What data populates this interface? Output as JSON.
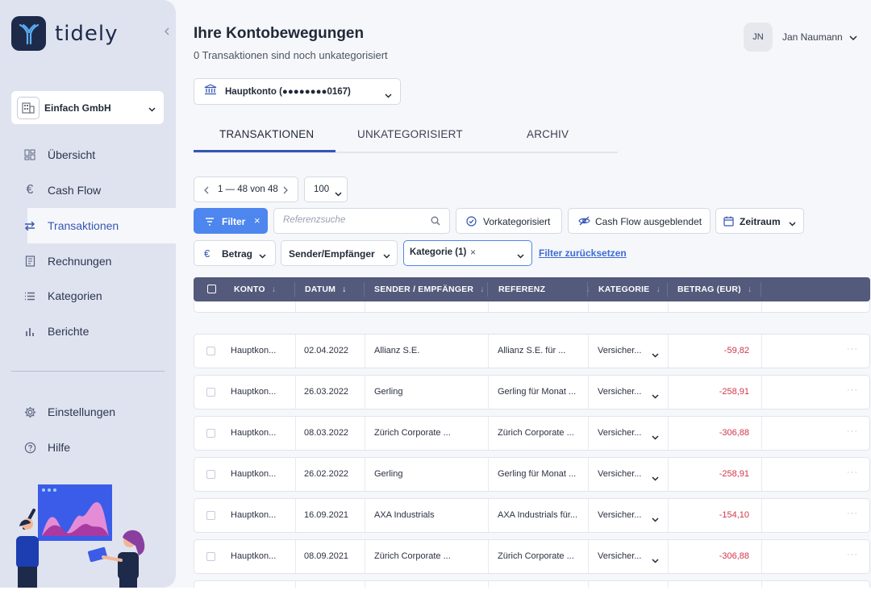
{
  "app": {
    "name": "tidely"
  },
  "sidebar": {
    "company": "Einfach GmbH",
    "nav": [
      {
        "label": "Übersicht",
        "icon": "dashboard-icon"
      },
      {
        "label": "Cash Flow",
        "icon": "euro-icon"
      },
      {
        "label": "Transaktionen",
        "icon": "transfer-icon"
      },
      {
        "label": "Rechnungen",
        "icon": "invoice-icon"
      },
      {
        "label": "Kategorien",
        "icon": "list-icon"
      },
      {
        "label": "Berichte",
        "icon": "bar-chart-icon"
      }
    ],
    "bottom_nav": [
      {
        "label": "Einstellungen",
        "icon": "gear-icon"
      },
      {
        "label": "Hilfe",
        "icon": "help-icon"
      }
    ]
  },
  "header": {
    "title": "Ihre Kontobewegungen",
    "subtitle": "0 Transaktionen sind noch unkategorisiert",
    "user_initials": "JN",
    "user_name": "Jan Naumann"
  },
  "account": {
    "label": "Hauptkonto (●●●●●●●●0167)"
  },
  "tabs": [
    {
      "label": "TRANSAKTIONEN",
      "active": true
    },
    {
      "label": "UNKATEGORISIERT",
      "active": false
    },
    {
      "label": "ARCHIV",
      "active": false
    }
  ],
  "pagination": {
    "range": "1 — 48 von 48",
    "per_page": "100"
  },
  "filters": {
    "filter_label": "Filter",
    "search_placeholder": "Referenzsuche",
    "vorkategorisiert": "Vorkategorisiert",
    "cashflow_hidden": "Cash Flow ausgeblendet",
    "zeitraum": "Zeitraum",
    "betrag": "Betrag",
    "sender": "Sender/Empfänger",
    "kategorie": "Kategorie (1)",
    "reset": "Filter zurücksetzen"
  },
  "table": {
    "columns": [
      "KONTO",
      "DATUM",
      "SENDER / EMPFÄNGER",
      "REFERENZ",
      "KATEGORIE",
      "BETRAG (EUR)"
    ],
    "rows": [
      {
        "konto": "Hauptkon...",
        "datum": "02.04.2022",
        "sender": "Allianz S.E.",
        "referenz": "Allianz S.E. für ...",
        "kategorie": "Versicher...",
        "betrag": "-59,82"
      },
      {
        "konto": "Hauptkon...",
        "datum": "26.03.2022",
        "sender": "Gerling",
        "referenz": "Gerling für Monat ...",
        "kategorie": "Versicher...",
        "betrag": "-258,91"
      },
      {
        "konto": "Hauptkon...",
        "datum": "08.03.2022",
        "sender": "Zürich Corporate ...",
        "referenz": "Zürich Corporate ...",
        "kategorie": "Versicher...",
        "betrag": "-306,88"
      },
      {
        "konto": "Hauptkon...",
        "datum": "26.02.2022",
        "sender": "Gerling",
        "referenz": "Gerling für Monat ...",
        "kategorie": "Versicher...",
        "betrag": "-258,91"
      },
      {
        "konto": "Hauptkon...",
        "datum": "16.09.2021",
        "sender": "AXA Industrials",
        "referenz": "AXA Industrials für...",
        "kategorie": "Versicher...",
        "betrag": "-154,10"
      },
      {
        "konto": "Hauptkon...",
        "datum": "08.09.2021",
        "sender": "Zürich Corporate ...",
        "referenz": "Zürich Corporate ...",
        "kategorie": "Versicher...",
        "betrag": "-306,88"
      }
    ],
    "more_label": "···"
  },
  "colors": {
    "accent": "#3656b4",
    "filter_button": "#4d86ee",
    "header_bg": "#545a7c",
    "negative": "#d0364a",
    "sidebar_bg": "#dfe3ef"
  }
}
